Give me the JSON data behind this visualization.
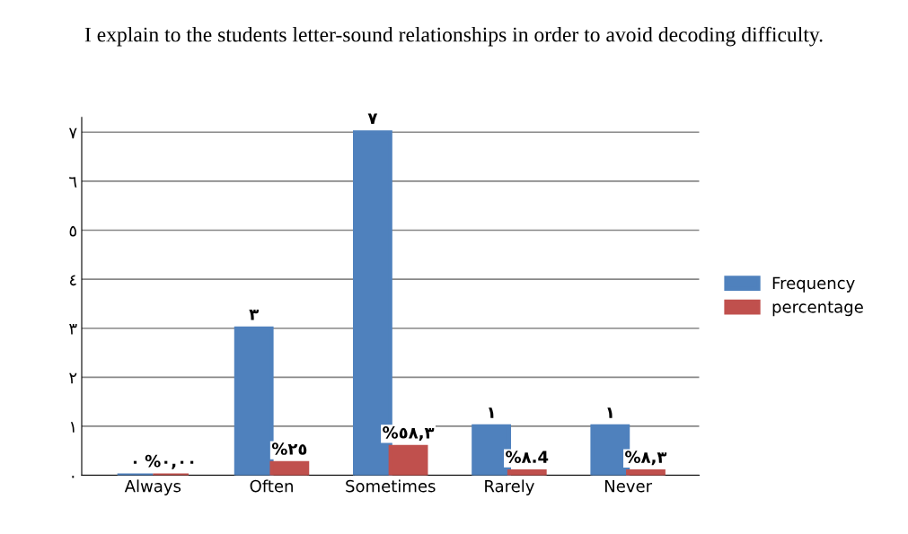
{
  "chart_data": {
    "type": "bar",
    "title": "I explain to the students letter-sound relationships in order to avoid decoding difficulty.",
    "categories": [
      "Always",
      "Often",
      "Sometimes",
      "Rarely",
      "Never"
    ],
    "series": [
      {
        "name": "Frequency",
        "color": "#4f81bd",
        "values": [
          0,
          3,
          7,
          1,
          1
        ],
        "value_labels": [
          "٠",
          "٣",
          "٧",
          "١",
          "١"
        ]
      },
      {
        "name": "percentage",
        "color": "#c0504d",
        "values": [
          0,
          0.25,
          0.583,
          0.084,
          0.083
        ],
        "value_labels": [
          "%٠,٠٠",
          "%٢٥",
          "%٥٨,٣",
          "%٨.4",
          "%٨,٣"
        ]
      }
    ],
    "ylim": [
      0,
      7.3
    ],
    "yticks": [
      {
        "value": 0,
        "label": "٠"
      },
      {
        "value": 1,
        "label": "١"
      },
      {
        "value": 2,
        "label": "٢"
      },
      {
        "value": 3,
        "label": "٣"
      },
      {
        "value": 4,
        "label": "٤"
      },
      {
        "value": 5,
        "label": "٥"
      },
      {
        "value": 6,
        "label": "٦"
      },
      {
        "value": 7,
        "label": "٧"
      }
    ],
    "grid": "y",
    "legend": "right"
  }
}
